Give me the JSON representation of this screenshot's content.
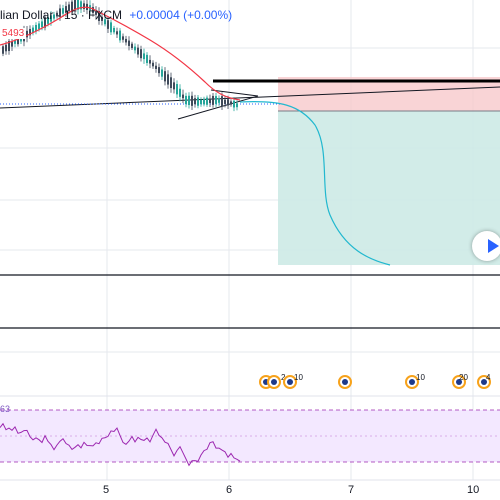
{
  "header": {
    "symbol": "lian Dollar · 15 · FXCM",
    "change": "+0.00004 (+0.00%)"
  },
  "price_tag": "5493",
  "rsi": {
    "label": "63"
  },
  "x_axis": {
    "ticks": [
      "5",
      "6",
      "7",
      "10"
    ]
  },
  "events": [
    {
      "icon": "currency-event-icon",
      "count": ""
    },
    {
      "icon": "currency-event-icon",
      "count": "2"
    },
    {
      "icon": "currency-event-icon",
      "count": "10"
    },
    {
      "icon": "currency-event-icon",
      "count": ""
    },
    {
      "icon": "currency-event-icon",
      "count": "10"
    },
    {
      "icon": "currency-event-icon",
      "count": "20"
    },
    {
      "icon": "currency-event-icon",
      "count": "4"
    }
  ],
  "colors": {
    "up": "#26a69a",
    "down": "#3f4a5a",
    "ma": "#f23645",
    "forecast": "#22b8cf",
    "short_zone_stop": "#f8c9cc",
    "short_zone_target": "#cdeae6",
    "rsi": "#9c27b0",
    "rsi_band": "#f3e8ff"
  }
}
